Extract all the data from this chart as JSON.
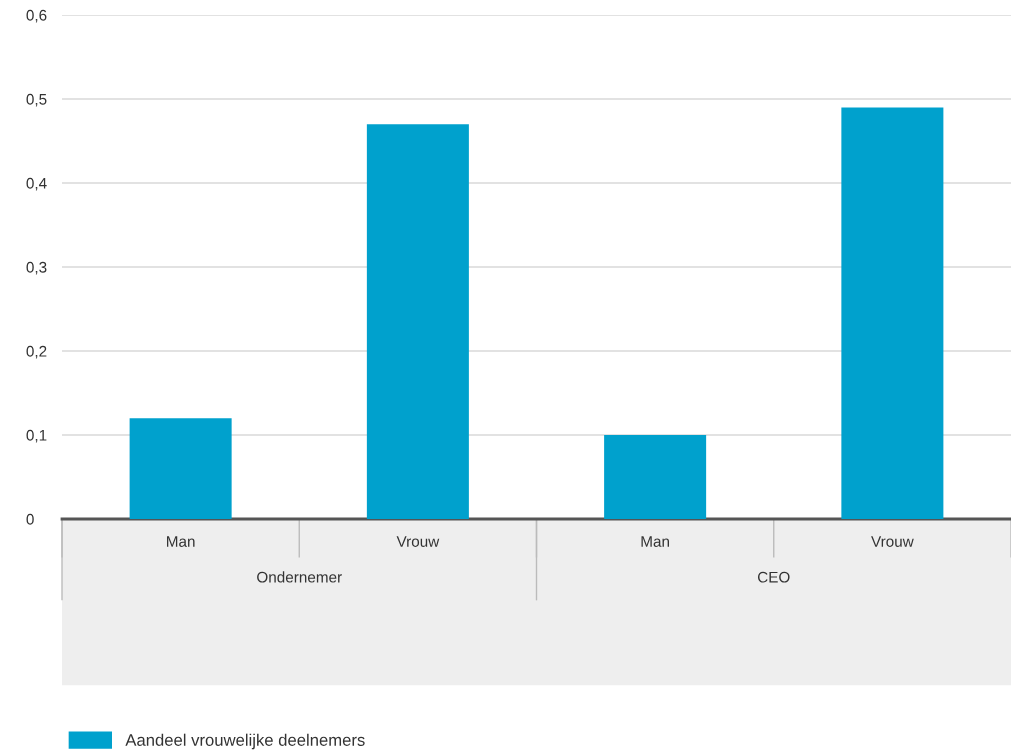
{
  "chart_data": {
    "type": "bar",
    "categories": [
      "Man",
      "Vrouw",
      "Man",
      "Vrouw"
    ],
    "series": [
      {
        "name": "Aandeel vrouwelijke deelnemers",
        "color": "#00a1cd",
        "values": [
          0.12,
          0.47,
          0.1,
          0.49
        ]
      }
    ],
    "annotations": [
      "Ondernemer",
      "CEO"
    ],
    "ylim": [
      0,
      0.6
    ],
    "yticks": [
      {
        "value": 0,
        "label": "0"
      },
      {
        "value": 0.1,
        "label": "0,1"
      },
      {
        "value": 0.2,
        "label": "0,2"
      },
      {
        "value": 0.3,
        "label": "0,3"
      },
      {
        "value": 0.4,
        "label": "0,4"
      },
      {
        "value": 0.5,
        "label": "0,5"
      },
      {
        "value": 0.6,
        "label": "0,6"
      }
    ],
    "grid": "y",
    "legend": "bottom left"
  }
}
